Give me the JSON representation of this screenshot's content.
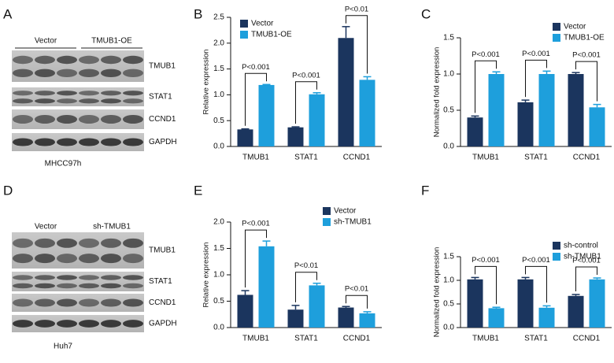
{
  "blots": [
    {
      "panel": "A",
      "groups": [
        "Vector",
        "TMUB1-OE"
      ],
      "bands": [
        "TMUB1",
        "STAT1",
        "CCND1",
        "GAPDH"
      ],
      "cell_line": "MHCC97h"
    },
    {
      "panel": "D",
      "groups": [
        "Vector",
        "sh-TMUB1"
      ],
      "bands": [
        "TMUB1",
        "STAT1",
        "CCND1",
        "GAPDH"
      ],
      "cell_line": "Huh7"
    }
  ],
  "chart_data": [
    {
      "type": "bar",
      "panel": "B",
      "ylabel": "Relative expression",
      "categories": [
        "TMUB1",
        "STAT1",
        "CCND1"
      ],
      "series": [
        {
          "name": "Vector",
          "color": "#1b355e",
          "values": [
            0.33,
            0.37,
            2.1
          ],
          "errors": [
            0.01,
            0.01,
            0.22
          ]
        },
        {
          "name": "TMUB1-OE",
          "color": "#1e9fdc",
          "values": [
            1.19,
            1.01,
            1.29
          ],
          "errors": [
            0.01,
            0.03,
            0.06
          ]
        }
      ],
      "annotations": [
        "P<0.001",
        "P<0.001",
        "P<0.01"
      ],
      "ylim": [
        0,
        2.5
      ],
      "yticks": [
        {
          "value": 0,
          "label": "0.0"
        },
        0.5,
        {
          "value": 1,
          "label": "1.0"
        },
        1.5,
        {
          "value": 2,
          "label": "2.0"
        },
        2.5
      ],
      "legend": "upper left"
    },
    {
      "type": "bar",
      "panel": "C",
      "ylabel": "Normalized fold expression",
      "categories": [
        "TMUB1",
        "STAT1",
        "CCND1"
      ],
      "series": [
        {
          "name": "Vector",
          "color": "#1b355e",
          "values": [
            0.4,
            0.61,
            1.0
          ],
          "errors": [
            0.02,
            0.03,
            0.02
          ]
        },
        {
          "name": "TMUB1-OE",
          "color": "#1e9fdc",
          "values": [
            1.0,
            1.0,
            0.54
          ],
          "errors": [
            0.03,
            0.04,
            0.04
          ]
        }
      ],
      "annotations": [
        "P<0.001",
        "P<0.001",
        "P<0.001"
      ],
      "ylim": [
        0,
        1.5
      ],
      "yticks": [
        {
          "value": 0,
          "label": "0.0"
        },
        0.5,
        {
          "value": 1,
          "label": "1.0"
        },
        1.5
      ],
      "legend": "upper right"
    },
    {
      "type": "bar",
      "panel": "E",
      "ylabel": "Relative expression",
      "categories": [
        "TMUB1",
        "STAT1",
        "CCND1"
      ],
      "series": [
        {
          "name": "Vector",
          "color": "#1b355e",
          "values": [
            0.62,
            0.34,
            0.38
          ],
          "errors": [
            0.08,
            0.08,
            0.02
          ]
        },
        {
          "name": "sh-TMUB1",
          "color": "#1e9fdc",
          "values": [
            1.54,
            0.8,
            0.27
          ],
          "errors": [
            0.1,
            0.04,
            0.03
          ]
        }
      ],
      "annotations": [
        "P<0.001",
        "P<0.01",
        "P<0.01"
      ],
      "ylim": [
        0,
        2.0
      ],
      "yticks": [
        {
          "value": 0,
          "label": "0.0"
        },
        0.5,
        {
          "value": 1,
          "label": "1.0"
        },
        1.5,
        {
          "value": 2,
          "label": "2.0"
        }
      ],
      "legend": "upper right"
    },
    {
      "type": "bar",
      "panel": "F",
      "ylabel": "Normalized fold expression",
      "categories": [
        "TMUB1",
        "STAT1",
        "CCND1"
      ],
      "series": [
        {
          "name": "sh-control",
          "color": "#1b355e",
          "values": [
            1.02,
            1.02,
            0.67
          ],
          "errors": [
            0.04,
            0.04,
            0.03
          ]
        },
        {
          "name": "sh-TMUB1",
          "color": "#1e9fdc",
          "values": [
            0.41,
            0.42,
            1.02
          ],
          "errors": [
            0.02,
            0.04,
            0.03
          ]
        }
      ],
      "annotations": [
        "P<0.001",
        "P<0.001",
        "P<0.001"
      ],
      "ylim": [
        0,
        1.5
      ],
      "yticks": [
        {
          "value": 0,
          "label": "0.0"
        },
        0.5,
        {
          "value": 1,
          "label": "1.0"
        },
        1.5
      ],
      "legend": "upper right"
    }
  ]
}
